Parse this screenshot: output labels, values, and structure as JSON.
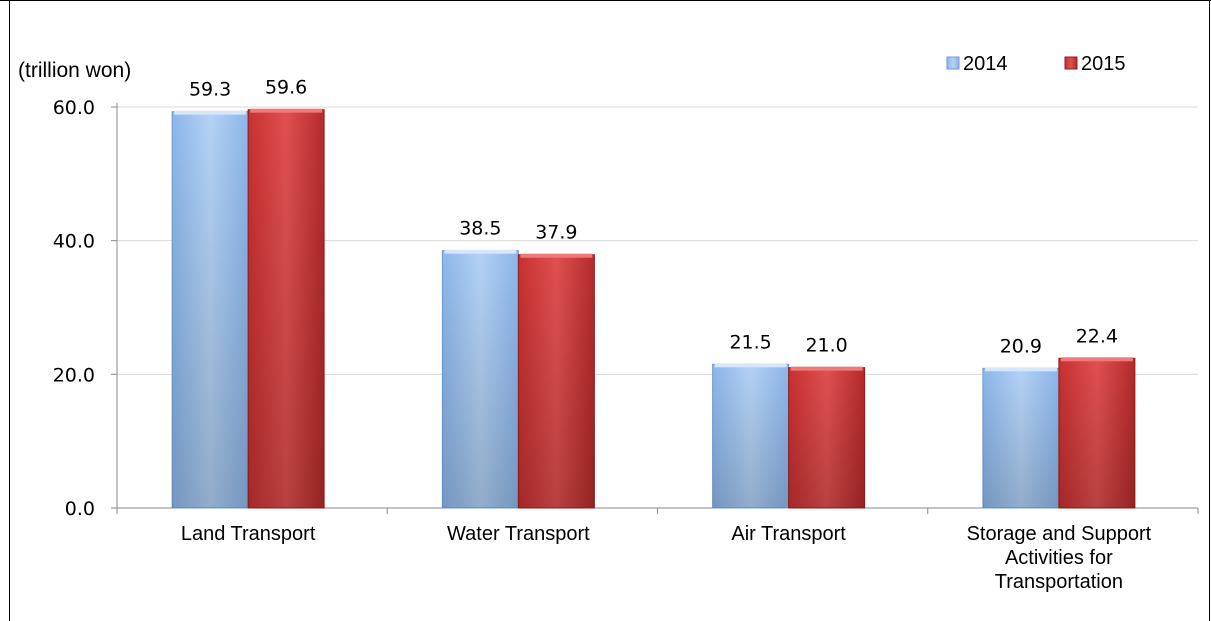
{
  "chart_data": {
    "type": "bar",
    "title": "",
    "unit_label": "(trillion won)",
    "categories": [
      [
        "Land Transport"
      ],
      [
        "Water Transport"
      ],
      [
        "Air Transport"
      ],
      [
        "Storage and Support",
        "Activities for",
        "Transportation"
      ]
    ],
    "series": [
      {
        "name": "2014",
        "values": [
          59.3,
          38.5,
          21.5,
          20.9
        ],
        "labels": [
          "59.3",
          "38.5",
          "21.5",
          "20.9"
        ],
        "color": "#9ec3f0",
        "color_dark": "#7aa7e0"
      },
      {
        "name": "2015",
        "values": [
          59.6,
          37.9,
          21.0,
          22.4
        ],
        "labels": [
          "59.6",
          "37.9",
          "21.0",
          "22.4"
        ],
        "color": "#d94545",
        "color_dark": "#a52525"
      }
    ],
    "ylim": [
      0,
      60
    ],
    "yticks": [
      "0.0",
      "20.0",
      "40.0",
      "60.0"
    ],
    "ytick_values": [
      0,
      20,
      40,
      60
    ],
    "grid": true,
    "legend_position": "top-right"
  }
}
